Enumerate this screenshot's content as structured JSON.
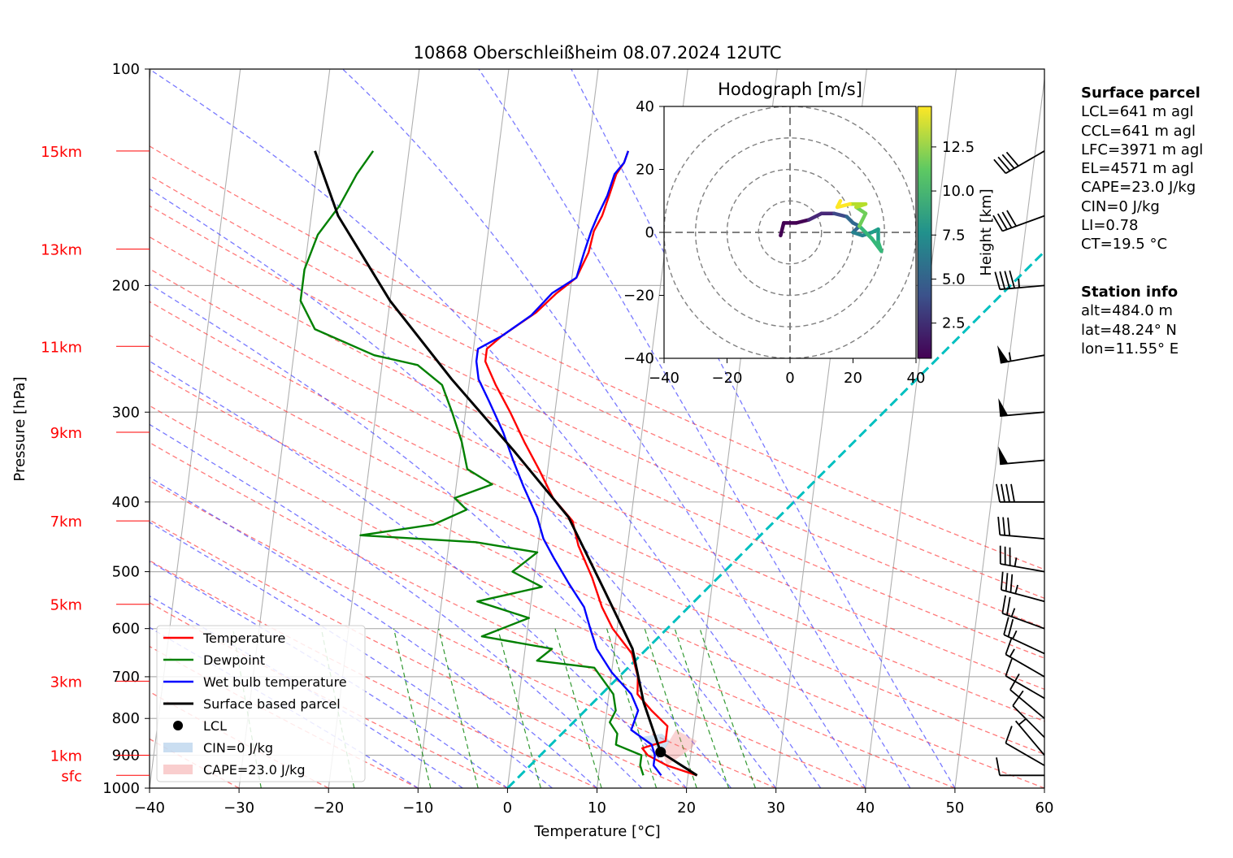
{
  "chart_data": {
    "type": "skewt",
    "title": "10868 Oberschleißheim 08.07.2024 12UTC",
    "xlabel": "Temperature [°C]",
    "ylabel": "Pressure [hPa]",
    "xlim": [
      -40,
      60
    ],
    "ylim": [
      1000,
      100
    ],
    "x_ticks": [
      -40,
      -30,
      -20,
      -10,
      0,
      10,
      20,
      30,
      40,
      50,
      60
    ],
    "y_ticks": [
      100,
      200,
      300,
      400,
      500,
      600,
      700,
      800,
      900,
      1000
    ],
    "height_labels": [
      {
        "label": "sfc",
        "p": 960
      },
      {
        "label": "1km",
        "p": 900
      },
      {
        "label": "3km",
        "p": 710
      },
      {
        "label": "5km",
        "p": 555
      },
      {
        "label": "7km",
        "p": 425
      },
      {
        "label": "9km",
        "p": 320
      },
      {
        "label": "11km",
        "p": 243
      },
      {
        "label": "13km",
        "p": 178
      },
      {
        "label": "15km",
        "p": 130
      }
    ],
    "legend": {
      "position": "lower-left",
      "entries": [
        "Temperature",
        "Dewpoint",
        "Wet bulb temperature",
        "Surface based parcel",
        "LCL",
        "CIN=0 J/kg",
        "CAPE=23.0 J/kg"
      ]
    },
    "series": [
      {
        "name": "Temperature",
        "color": "#ff0000",
        "points": [
          [
            21,
            960
          ],
          [
            17.5,
            930
          ],
          [
            15.2,
            900
          ],
          [
            14.5,
            880
          ],
          [
            17,
            860
          ],
          [
            17,
            820
          ],
          [
            15,
            780
          ],
          [
            13.2,
            740
          ],
          [
            13,
            700
          ],
          [
            12,
            650
          ],
          [
            9.5,
            600
          ],
          [
            8,
            560
          ],
          [
            6.5,
            510
          ],
          [
            4.5,
            460
          ],
          [
            3.5,
            425
          ],
          [
            1,
            395
          ],
          [
            -1,
            360
          ],
          [
            -3,
            330
          ],
          [
            -5,
            300
          ],
          [
            -7,
            275
          ],
          [
            -8.5,
            255
          ],
          [
            -8.5,
            245
          ],
          [
            -7,
            235
          ],
          [
            -3.5,
            218
          ],
          [
            -1.5,
            205
          ],
          [
            0.5,
            195
          ],
          [
            1.5,
            180
          ],
          [
            1.8,
            168
          ],
          [
            2.5,
            160
          ],
          [
            3,
            150
          ],
          [
            3.5,
            140
          ],
          [
            4.2,
            135
          ],
          [
            4.5,
            130
          ]
        ]
      },
      {
        "name": "Dewpoint",
        "color": "#008000",
        "points": [
          [
            15,
            960
          ],
          [
            14.5,
            930
          ],
          [
            14.5,
            900
          ],
          [
            11.5,
            870
          ],
          [
            11.5,
            840
          ],
          [
            10.5,
            810
          ],
          [
            11,
            780
          ],
          [
            10.5,
            740
          ],
          [
            8,
            680
          ],
          [
            1.5,
            665
          ],
          [
            3,
            640
          ],
          [
            -5,
            615
          ],
          [
            0,
            580
          ],
          [
            -6,
            550
          ],
          [
            1,
            525
          ],
          [
            -2.5,
            500
          ],
          [
            0,
            470
          ],
          [
            -7,
            455
          ],
          [
            -20,
            445
          ],
          [
            -12,
            430
          ],
          [
            -8.5,
            410
          ],
          [
            -10,
            395
          ],
          [
            -6,
            378
          ],
          [
            -9,
            360
          ],
          [
            -10,
            330
          ],
          [
            -11.5,
            300
          ],
          [
            -13,
            275
          ],
          [
            -16,
            258
          ],
          [
            -21,
            250
          ],
          [
            -28,
            230
          ],
          [
            -30,
            210
          ],
          [
            -30,
            190
          ],
          [
            -29,
            170
          ],
          [
            -27,
            155
          ],
          [
            -25.5,
            140
          ],
          [
            -24,
            130
          ]
        ]
      },
      {
        "name": "Wet bulb temperature",
        "color": "#0000ff",
        "points": [
          [
            17,
            960
          ],
          [
            16,
            930
          ],
          [
            16,
            900
          ],
          [
            15.5,
            870
          ],
          [
            13,
            830
          ],
          [
            13.5,
            780
          ],
          [
            12.5,
            740
          ],
          [
            10,
            690
          ],
          [
            8,
            640
          ],
          [
            7,
            600
          ],
          [
            6,
            560
          ],
          [
            4,
            520
          ],
          [
            2,
            480
          ],
          [
            0.5,
            450
          ],
          [
            -0.5,
            420
          ],
          [
            -2.5,
            380
          ],
          [
            -4,
            350
          ],
          [
            -5.5,
            320
          ],
          [
            -7.5,
            290
          ],
          [
            -9,
            270
          ],
          [
            -9.5,
            255
          ],
          [
            -9.5,
            245
          ],
          [
            -7,
            235
          ],
          [
            -4,
            220
          ],
          [
            -2,
            205
          ],
          [
            0.5,
            195
          ],
          [
            1,
            180
          ],
          [
            1.5,
            168
          ],
          [
            2,
            160
          ],
          [
            2.8,
            150
          ],
          [
            3.3,
            140
          ],
          [
            4.2,
            135
          ],
          [
            4.5,
            130
          ]
        ]
      },
      {
        "name": "Surface based parcel",
        "color": "#000000",
        "points": [
          [
            21,
            960
          ],
          [
            16.6,
            891
          ],
          [
            14,
            760
          ],
          [
            12,
            640
          ],
          [
            8,
            530
          ],
          [
            3,
            420
          ],
          [
            -4,
            340
          ],
          [
            -12,
            270
          ],
          [
            -20,
            210
          ],
          [
            -27,
            160
          ],
          [
            -30.5,
            130
          ]
        ]
      }
    ],
    "lcl": {
      "t": 16.6,
      "p": 891
    },
    "cape_fill": [
      [
        17.5,
        930
      ],
      [
        19,
        900
      ],
      [
        20,
        880
      ],
      [
        20.5,
        860
      ],
      [
        18,
        830
      ],
      [
        16.8,
        891
      ]
    ],
    "cin_fill": [
      [
        16.8,
        891
      ],
      [
        15.5,
        870
      ],
      [
        14,
        850
      ],
      [
        16.5,
        840
      ],
      [
        17.5,
        860
      ]
    ],
    "freezing_line": [
      [
        0,
        1000
      ],
      [
        60,
        140
      ]
    ],
    "dry_adiabats_theta_c": [
      -30,
      -20,
      -10,
      0,
      10,
      20,
      30,
      40,
      50,
      60,
      70,
      80,
      90,
      100,
      110,
      120,
      130
    ],
    "moist_adiabats_t0": [
      -10,
      -5,
      0,
      5,
      10,
      15,
      20,
      25,
      30,
      35,
      40,
      45,
      50
    ],
    "mixing_ratios_gkg": [
      0.4,
      1,
      2,
      3,
      5,
      8,
      12,
      16,
      20,
      24
    ],
    "wind_barbs": [
      {
        "p": 960,
        "dir": 270,
        "spd": 10
      },
      {
        "p": 930,
        "dir": 300,
        "spd": 8
      },
      {
        "p": 900,
        "dir": 320,
        "spd": 6
      },
      {
        "p": 850,
        "dir": 315,
        "spd": 8
      },
      {
        "p": 800,
        "dir": 310,
        "spd": 10
      },
      {
        "p": 750,
        "dir": 300,
        "spd": 10
      },
      {
        "p": 700,
        "dir": 300,
        "spd": 14
      },
      {
        "p": 650,
        "dir": 295,
        "spd": 25
      },
      {
        "p": 600,
        "dir": 290,
        "spd": 25
      },
      {
        "p": 550,
        "dir": 285,
        "spd": 35
      },
      {
        "p": 500,
        "dir": 280,
        "spd": 35
      },
      {
        "p": 450,
        "dir": 275,
        "spd": 30
      },
      {
        "p": 400,
        "dir": 270,
        "spd": 40
      },
      {
        "p": 350,
        "dir": 265,
        "spd": 50
      },
      {
        "p": 300,
        "dir": 265,
        "spd": 50
      },
      {
        "p": 250,
        "dir": 260,
        "spd": 55
      },
      {
        "p": 200,
        "dir": 265,
        "spd": 45
      },
      {
        "p": 160,
        "dir": 250,
        "spd": 40
      },
      {
        "p": 130,
        "dir": 240,
        "spd": 40
      }
    ],
    "hodograph": {
      "title": "Hodograph [m/s]",
      "xlim": [
        -40,
        40
      ],
      "ylim": [
        -40,
        40
      ],
      "ticks": [
        -40,
        -20,
        0,
        20,
        40
      ],
      "rings": [
        10,
        20,
        30,
        40
      ],
      "colorbar_label": "Height [km]",
      "colorbar_ticks": [
        2.5,
        5.0,
        7.5,
        10.0,
        12.5
      ],
      "colorbar_range": [
        0.5,
        14.8
      ],
      "points": [
        {
          "u": -3,
          "v": -1,
          "h": 0.5
        },
        {
          "u": -2,
          "v": 3,
          "h": 1.0
        },
        {
          "u": 2,
          "v": 3,
          "h": 1.8
        },
        {
          "u": 6,
          "v": 4,
          "h": 2.5
        },
        {
          "u": 10,
          "v": 6,
          "h": 3.2
        },
        {
          "u": 14,
          "v": 6,
          "h": 4.0
        },
        {
          "u": 18,
          "v": 5,
          "h": 4.8
        },
        {
          "u": 20,
          "v": 3,
          "h": 5.5
        },
        {
          "u": 22,
          "v": 2,
          "h": 6.2
        },
        {
          "u": 20,
          "v": 0,
          "h": 6.8
        },
        {
          "u": 23,
          "v": -1,
          "h": 7.4
        },
        {
          "u": 26,
          "v": 0,
          "h": 8.0
        },
        {
          "u": 28,
          "v": 1,
          "h": 8.6
        },
        {
          "u": 28,
          "v": -3,
          "h": 9.2
        },
        {
          "u": 29,
          "v": -6,
          "h": 9.8
        },
        {
          "u": 26,
          "v": -2,
          "h": 10.4
        },
        {
          "u": 22,
          "v": 2,
          "h": 11.0
        },
        {
          "u": 24,
          "v": 6,
          "h": 11.6
        },
        {
          "u": 21,
          "v": 8,
          "h": 12.2
        },
        {
          "u": 24,
          "v": 9,
          "h": 12.8
        },
        {
          "u": 19,
          "v": 9,
          "h": 13.4
        },
        {
          "u": 15,
          "v": 8,
          "h": 14.0
        },
        {
          "u": 16,
          "v": 10,
          "h": 14.6
        }
      ]
    }
  },
  "panel": {
    "surface": {
      "title": "Surface parcel",
      "lines": [
        "LCL=641 m agl",
        "CCL=641 m agl",
        "LFC=3971 m agl",
        "EL=4571 m agl",
        "CAPE=23.0 J/kg",
        "CIN=0 J/kg",
        "LI=0.78",
        "CT=19.5 °C"
      ]
    },
    "station": {
      "title": "Station info",
      "lines": [
        "alt=484.0 m",
        "lat=48.24° N",
        "lon=11.55° E"
      ]
    }
  }
}
